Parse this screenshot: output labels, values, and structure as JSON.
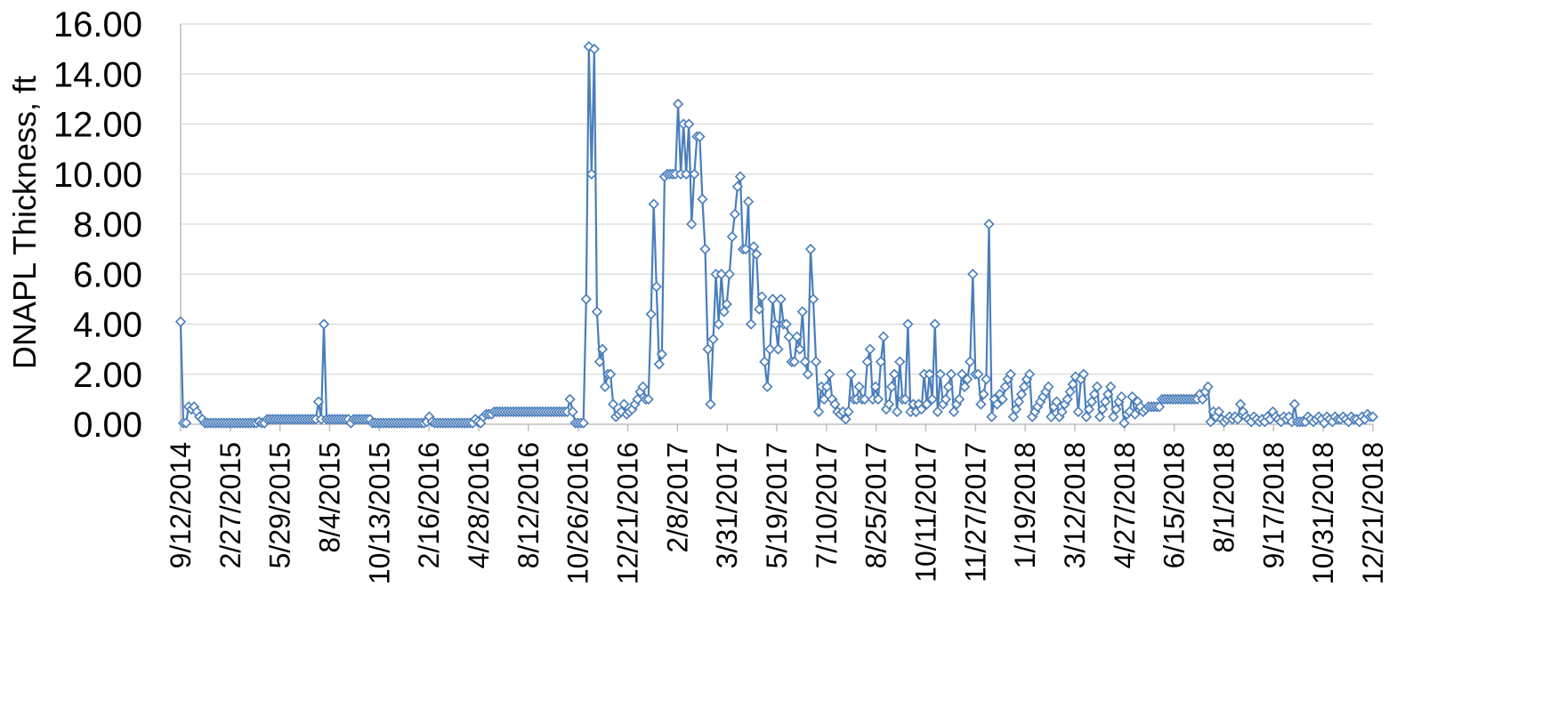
{
  "chart_data": {
    "type": "line",
    "title": "",
    "xlabel": "",
    "ylabel": "DNAPL Thickness, ft",
    "ylim": [
      0,
      16
    ],
    "y_ticks": [
      "0.00",
      "2.00",
      "4.00",
      "6.00",
      "8.00",
      "10.00",
      "12.00",
      "14.00",
      "16.00"
    ],
    "x_tick_labels": [
      "9/12/2014",
      "2/27/2015",
      "5/29/2015",
      "8/4/2015",
      "10/13/2015",
      "2/16/2016",
      "4/28/2016",
      "8/12/2016",
      "10/26/2016",
      "12/21/2016",
      "2/8/2017",
      "3/31/2017",
      "5/19/2017",
      "7/10/2017",
      "8/25/2017",
      "10/11/2017",
      "11/27/2017",
      "1/19/2018",
      "3/12/2018",
      "4/27/2018",
      "6/15/2018",
      "8/1/2018",
      "9/17/2018",
      "10/31/2018",
      "12/21/2018"
    ],
    "grid": true,
    "legend": "none",
    "marker": "diamond",
    "colors": {
      "series": "#4a7ebb",
      "grid": "#d9d9d9",
      "axis": "#bfbfbf"
    },
    "series": [
      {
        "values": [
          4.1,
          0.05,
          0.05,
          0.7,
          0.6,
          0.7,
          0.5,
          0.3,
          0.2,
          0.05,
          0.05,
          0.05,
          0.05,
          0.05,
          0.05,
          0.05,
          0.05,
          0.05,
          0.05,
          0.05,
          0.05,
          0.05,
          0.05,
          0.05,
          0.05,
          0.05,
          0.05,
          0.05,
          0.05,
          0.1,
          0.05,
          0.05,
          0.2,
          0.2,
          0.2,
          0.2,
          0.2,
          0.2,
          0.2,
          0.2,
          0.2,
          0.2,
          0.2,
          0.2,
          0.2,
          0.2,
          0.2,
          0.2,
          0.2,
          0.2,
          0.2,
          0.9,
          0.2,
          4.0,
          0.2,
          0.2,
          0.2,
          0.2,
          0.2,
          0.2,
          0.2,
          0.2,
          0.2,
          0.05,
          0.2,
          0.2,
          0.2,
          0.2,
          0.2,
          0.2,
          0.2,
          0.05,
          0.05,
          0.05,
          0.05,
          0.05,
          0.05,
          0.05,
          0.05,
          0.05,
          0.05,
          0.05,
          0.05,
          0.05,
          0.05,
          0.05,
          0.05,
          0.05,
          0.05,
          0.05,
          0.05,
          0.1,
          0.3,
          0.1,
          0.05,
          0.05,
          0.05,
          0.05,
          0.05,
          0.05,
          0.05,
          0.05,
          0.05,
          0.05,
          0.05,
          0.05,
          0.05,
          0.05,
          0.05,
          0.2,
          0.1,
          0.05,
          0.3,
          0.4,
          0.4,
          0.4,
          0.5,
          0.5,
          0.5,
          0.5,
          0.5,
          0.5,
          0.5,
          0.5,
          0.5,
          0.5,
          0.5,
          0.5,
          0.5,
          0.5,
          0.5,
          0.5,
          0.5,
          0.5,
          0.5,
          0.5,
          0.5,
          0.5,
          0.5,
          0.5,
          0.5,
          0.5,
          0.5,
          0.5,
          1.0,
          0.5,
          0.05,
          0.05,
          0.05,
          0.05,
          5.0,
          15.1,
          10.0,
          15.0,
          4.5,
          2.5,
          3.0,
          1.5,
          2.0,
          2.0,
          0.8,
          0.3,
          0.4,
          0.5,
          0.8,
          0.4,
          0.5,
          0.6,
          0.8,
          1.0,
          1.3,
          1.5,
          1.0,
          1.0,
          4.4,
          8.8,
          5.5,
          2.4,
          2.8,
          9.9,
          10.0,
          10.0,
          10.0,
          10.0,
          12.8,
          10.0,
          12.0,
          10.0,
          12.0,
          8.0,
          10.0,
          11.5,
          11.5,
          9.0,
          7.0,
          3.0,
          0.8,
          3.4,
          6.0,
          4.0,
          6.0,
          4.5,
          4.8,
          6.0,
          7.5,
          8.4,
          9.5,
          9.9,
          7.0,
          7.0,
          8.9,
          4.0,
          7.1,
          6.8,
          4.6,
          5.1,
          2.5,
          1.5,
          3.0,
          5.0,
          4.0,
          3.0,
          5.0,
          4.0,
          4.0,
          3.5,
          2.5,
          2.5,
          3.5,
          3.0,
          4.5,
          2.5,
          2.0,
          7.0,
          5.0,
          2.5,
          0.5,
          1.5,
          1.0,
          1.5,
          2.0,
          1.0,
          0.8,
          0.5,
          0.4,
          0.5,
          0.2,
          0.5,
          2.0,
          1.0,
          1.0,
          1.5,
          1.0,
          1.0,
          2.5,
          3.0,
          1.0,
          1.5,
          1.0,
          2.5,
          3.5,
          0.6,
          0.8,
          1.5,
          2.0,
          0.5,
          2.5,
          1.0,
          1.0,
          4.0,
          0.5,
          0.8,
          0.5,
          0.8,
          0.6,
          2.0,
          0.8,
          2.0,
          1.0,
          4.0,
          0.5,
          2.0,
          0.8,
          1.0,
          1.5,
          2.0,
          0.5,
          0.8,
          1.0,
          2.0,
          1.5,
          1.8,
          2.5,
          6.0,
          2.0,
          2.0,
          0.8,
          1.2,
          1.8,
          8.0,
          0.3,
          1.0,
          0.8,
          1.2,
          1.0,
          1.5,
          1.8,
          2.0,
          0.3,
          0.6,
          0.9,
          1.2,
          1.5,
          1.8,
          2.0,
          0.3,
          0.5,
          0.7,
          0.9,
          1.1,
          1.3,
          1.5,
          0.3,
          0.7,
          0.9,
          0.3,
          0.5,
          0.8,
          1.0,
          1.3,
          1.6,
          1.9,
          0.5,
          1.8,
          2.0,
          0.3,
          0.6,
          0.9,
          1.2,
          1.5,
          0.3,
          0.6,
          0.9,
          1.2,
          1.5,
          0.3,
          0.6,
          0.9,
          1.1,
          0.05,
          0.4,
          0.5,
          1.1,
          0.4,
          0.9,
          0.7,
          0.5,
          0.6,
          0.7,
          0.7,
          0.7,
          0.7,
          0.7,
          1.0,
          1.0,
          1.0,
          1.0,
          1.0,
          1.0,
          1.0,
          1.0,
          1.0,
          1.0,
          1.0,
          1.0,
          1.0,
          1.0,
          1.2,
          1.0,
          1.3,
          1.5,
          0.1,
          0.5,
          0.3,
          0.5,
          0.2,
          0.1,
          0.2,
          0.3,
          0.2,
          0.3,
          0.2,
          0.8,
          0.5,
          0.3,
          0.2,
          0.1,
          0.3,
          0.2,
          0.1,
          0.2,
          0.1,
          0.3,
          0.2,
          0.5,
          0.3,
          0.2,
          0.1,
          0.3,
          0.2,
          0.3,
          0.1,
          0.8,
          0.1,
          0.1,
          0.1,
          0.1,
          0.3,
          0.2,
          0.1,
          0.2,
          0.3,
          0.2,
          0.05,
          0.3,
          0.2,
          0.1,
          0.3,
          0.2,
          0.2,
          0.3,
          0.2,
          0.1,
          0.3,
          0.2,
          0.2,
          0.1,
          0.3,
          0.2,
          0.4,
          0.3,
          0.3
        ]
      }
    ]
  }
}
